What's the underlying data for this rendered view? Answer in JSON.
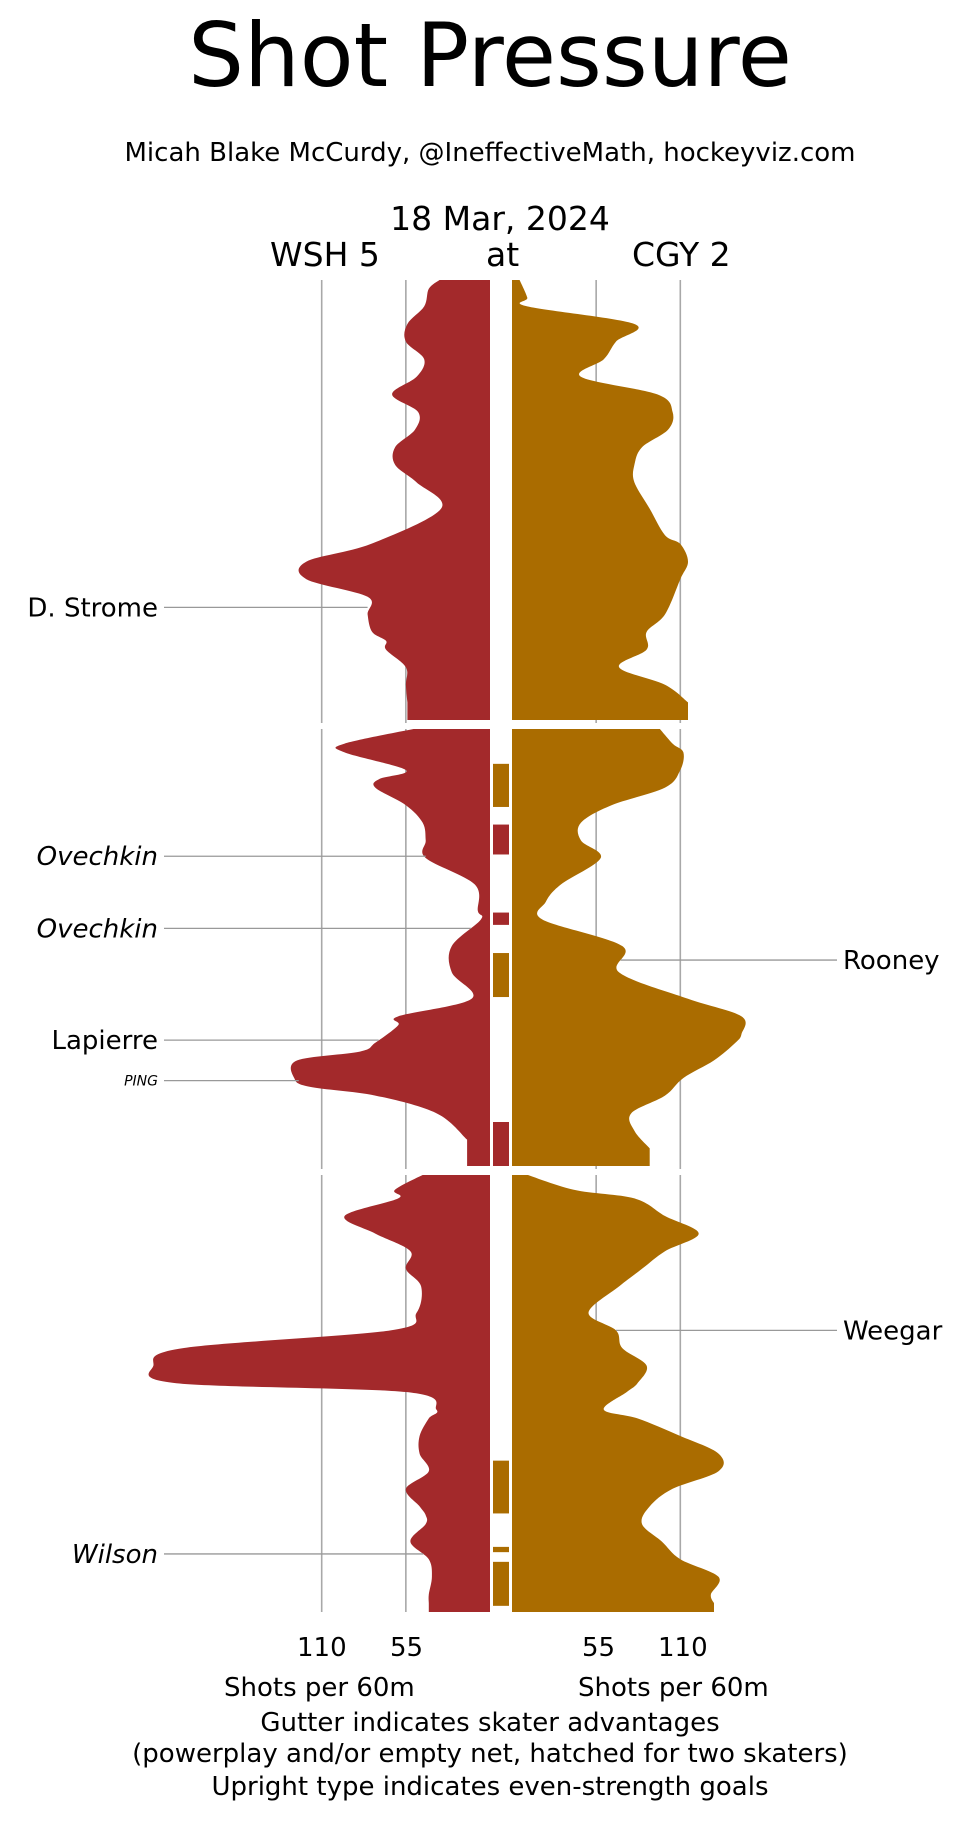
{
  "chart_data": {
    "type": "area",
    "title": "Shot Pressure",
    "subtitle": "Micah Blake McCurdy, @IneffectiveMath, hockeyviz.com",
    "date": "18 Mar, 2024",
    "away": {
      "label": "WSH 5",
      "color": "#a3292b"
    },
    "at_label": "at",
    "home": {
      "label": "CGY 2",
      "color": "#aa6c00"
    },
    "x_ticks_away": [
      "110",
      "55"
    ],
    "x_ticks_home": [
      "55",
      "110"
    ],
    "xlabel_away": "Shots per 60m",
    "xlabel_home": "Shots per 60m",
    "xlim": [
      0,
      150
    ],
    "periods": 3,
    "series": [
      {
        "name": "WSH 5",
        "periods": [
          [
            [
              0,
              33
            ],
            [
              1,
              40
            ],
            [
              3,
              43
            ],
            [
              5,
              54
            ],
            [
              7,
              55
            ],
            [
              9,
              43
            ],
            [
              11,
              48
            ],
            [
              13,
              64
            ],
            [
              15,
              47
            ],
            [
              17,
              49
            ],
            [
              19,
              62
            ],
            [
              21,
              62
            ],
            [
              23,
              48
            ],
            [
              26,
              32
            ],
            [
              30,
              78
            ],
            [
              32,
              120
            ],
            [
              34,
              120
            ],
            [
              36,
              80
            ],
            [
              38,
              80
            ],
            [
              40,
              77
            ],
            [
              41,
              68
            ],
            [
              42,
              68
            ],
            [
              44,
              55
            ],
            [
              46,
              55
            ],
            [
              48,
              54
            ]
          ],
          [
            [
              0,
              40
            ],
            [
              2,
              95
            ],
            [
              3,
              95
            ],
            [
              5,
              55
            ],
            [
              6,
              72
            ],
            [
              7,
              75
            ],
            [
              9,
              55
            ],
            [
              11,
              44
            ],
            [
              13,
              42
            ],
            [
              15,
              42
            ],
            [
              18,
              10
            ],
            [
              21,
              8
            ],
            [
              22,
              6
            ],
            [
              25,
              25
            ],
            [
              28,
              25
            ],
            [
              31,
              12
            ],
            [
              33,
              60
            ],
            [
              34,
              60
            ],
            [
              36,
              75
            ],
            [
              37,
              85
            ],
            [
              38,
              126
            ],
            [
              40,
              128
            ],
            [
              41,
              118
            ],
            [
              42,
              75
            ],
            [
              44,
              35
            ],
            [
              47,
              15
            ]
          ],
          [
            [
              0,
              40
            ],
            [
              2,
              62
            ],
            [
              3,
              60
            ],
            [
              5,
              95
            ],
            [
              7,
              75
            ],
            [
              9,
              52
            ],
            [
              11,
              55
            ],
            [
              13,
              45
            ],
            [
              16,
              48
            ],
            [
              18,
              65
            ],
            [
              20,
              200
            ],
            [
              22,
              220
            ],
            [
              24,
              205
            ],
            [
              25,
              55
            ],
            [
              27,
              35
            ],
            [
              28,
              40
            ],
            [
              30,
              46
            ],
            [
              32,
              46
            ],
            [
              34,
              40
            ],
            [
              36,
              55
            ],
            [
              38,
              46
            ],
            [
              39,
              42
            ],
            [
              40,
              42
            ],
            [
              42,
              52
            ],
            [
              44,
              40
            ],
            [
              46,
              38
            ],
            [
              48,
              40
            ],
            [
              49,
              40
            ]
          ]
        ]
      },
      {
        "name": "CGY 2",
        "periods": [
          [
            [
              0,
              5
            ],
            [
              2,
              10
            ],
            [
              3,
              10
            ],
            [
              5,
              80
            ],
            [
              7,
              68
            ],
            [
              9,
              60
            ],
            [
              11,
              45
            ],
            [
              13,
              95
            ],
            [
              15,
              105
            ],
            [
              17,
              102
            ],
            [
              19,
              85
            ],
            [
              21,
              80
            ],
            [
              23,
              80
            ],
            [
              26,
              90
            ],
            [
              29,
              100
            ],
            [
              30,
              110
            ],
            [
              32,
              115
            ],
            [
              34,
              110
            ],
            [
              38,
              100
            ],
            [
              40,
              88
            ],
            [
              42,
              88
            ],
            [
              44,
              70
            ],
            [
              46,
              100
            ],
            [
              48,
              115
            ]
          ],
          [
            [
              0,
              95
            ],
            [
              2,
              105
            ],
            [
              3,
              112
            ],
            [
              5,
              110
            ],
            [
              7,
              100
            ],
            [
              9,
              65
            ],
            [
              11,
              45
            ],
            [
              13,
              45
            ],
            [
              15,
              58
            ],
            [
              18,
              32
            ],
            [
              20,
              22
            ],
            [
              22,
              20
            ],
            [
              25,
              72
            ],
            [
              28,
              70
            ],
            [
              31,
              115
            ],
            [
              33,
              150
            ],
            [
              35,
              150
            ],
            [
              36,
              146
            ],
            [
              38,
              132
            ],
            [
              40,
              112
            ],
            [
              42,
              100
            ],
            [
              44,
              78
            ],
            [
              46,
              80
            ],
            [
              48,
              90
            ]
          ],
          [
            [
              0,
              5
            ],
            [
              2,
              40
            ],
            [
              3,
              80
            ],
            [
              5,
              100
            ],
            [
              7,
              122
            ],
            [
              9,
              100
            ],
            [
              11,
              85
            ],
            [
              13,
              70
            ],
            [
              16,
              50
            ],
            [
              18,
              68
            ],
            [
              20,
              72
            ],
            [
              22,
              88
            ],
            [
              24,
              82
            ],
            [
              25,
              75
            ],
            [
              27,
              60
            ],
            [
              28,
              82
            ],
            [
              30,
              110
            ],
            [
              32,
              135
            ],
            [
              34,
              135
            ],
            [
              36,
              105
            ],
            [
              38,
              90
            ],
            [
              40,
              85
            ],
            [
              42,
              98
            ],
            [
              44,
              110
            ],
            [
              46,
              135
            ],
            [
              48,
              130
            ],
            [
              49,
              132
            ]
          ]
        ]
      }
    ],
    "gutter": [
      {
        "period": 2,
        "t0": 4.3,
        "t1": 9.2,
        "team": "CGY 2"
      },
      {
        "period": 2,
        "t0": 11.2,
        "t1": 14.6,
        "team": "WSH 5"
      },
      {
        "period": 2,
        "t0": 21.2,
        "t1": 22.6,
        "team": "WSH 5"
      },
      {
        "period": 2,
        "t0": 25.8,
        "t1": 30.8,
        "team": "CGY 2"
      },
      {
        "period": 2,
        "t0": 45.0,
        "t1": 50.0,
        "team": "WSH 5"
      },
      {
        "period": 3,
        "t0": 32.8,
        "t1": 38.8,
        "team": "CGY 2"
      },
      {
        "period": 3,
        "t0": 42.6,
        "t1": 43.2,
        "team": "CGY 2"
      },
      {
        "period": 3,
        "t0": 44.3,
        "t1": 49.3,
        "team": "CGY 2"
      }
    ],
    "goals": [
      {
        "name": "D. Strome",
        "team": "WSH 5",
        "period": 1,
        "t": 37.2,
        "italic": false,
        "small": false
      },
      {
        "name": "Ovechkin",
        "team": "WSH 5",
        "period": 2,
        "t": 14.8,
        "italic": true,
        "small": false
      },
      {
        "name": "Ovechkin",
        "team": "WSH 5",
        "period": 2,
        "t": 23.0,
        "italic": true,
        "small": false
      },
      {
        "name": "Lapierre",
        "team": "WSH 5",
        "period": 2,
        "t": 35.7,
        "italic": false,
        "small": false
      },
      {
        "name": "PING",
        "team": "WSH 5",
        "period": 2,
        "t": 40.3,
        "italic": true,
        "small": true
      },
      {
        "name": "Wilson",
        "team": "WSH 5",
        "period": 3,
        "t": 43.4,
        "italic": true,
        "small": false
      },
      {
        "name": "Rooney",
        "team": "CGY 2",
        "period": 2,
        "t": 26.6,
        "italic": false,
        "small": false
      },
      {
        "name": "Weegar",
        "team": "CGY 2",
        "period": 3,
        "t": 18.0,
        "italic": false,
        "small": false
      }
    ],
    "footnotes": [
      "Gutter indicates skater advantages",
      "(powerplay and/or empty net, hatched for two skaters)",
      "Upright type indicates even-strength goals"
    ]
  }
}
